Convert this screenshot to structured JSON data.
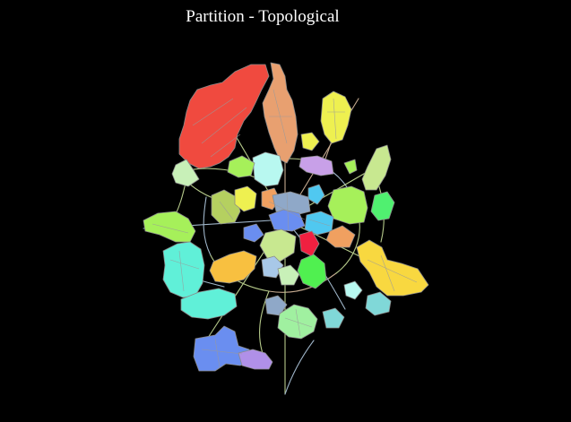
{
  "title": "Partition - Topological",
  "colors": {
    "background": "#000000",
    "title_text": "#ffffff",
    "region_outline": "#8a8a8a",
    "road_network": [
      "#b5c98a",
      "#9fb5c9",
      "#c4a98f"
    ],
    "partition_palette": [
      "#f04a3f",
      "#e8a070",
      "#eef050",
      "#c8a0e8",
      "#a6f05a",
      "#c8f0b8",
      "#b8f8f0",
      "#6a8ef0",
      "#50c8f0",
      "#f0a060",
      "#f02040",
      "#50f070",
      "#60f0d8",
      "#f8c040",
      "#f8d840",
      "#a0f0a0",
      "#80d8d8",
      "#b090e8"
    ]
  }
}
